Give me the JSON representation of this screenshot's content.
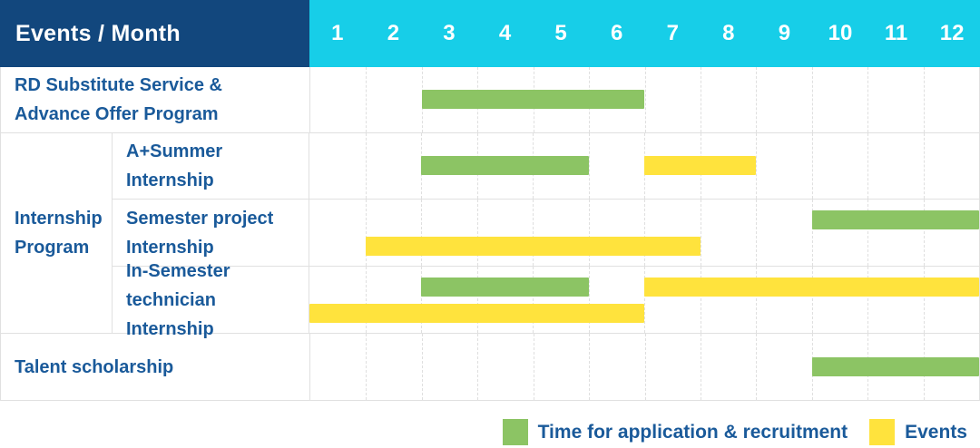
{
  "colors": {
    "header_bg": "#12477D",
    "months_bg": "#17CEE8",
    "application_green": "#8CC464",
    "events_yellow": "#FFE33D",
    "label_blue": "#1A5A9A",
    "grid_gray": "#E0E0E0"
  },
  "header": {
    "label": "Events / Month",
    "months": [
      "1",
      "2",
      "3",
      "4",
      "5",
      "6",
      "7",
      "8",
      "9",
      "10",
      "11",
      "12"
    ]
  },
  "legend": {
    "application": "Time for application & recruitment",
    "events": "Events"
  },
  "chart_data": {
    "type": "gantt",
    "title": "Events / Month",
    "x_axis": {
      "label": "Month",
      "ticks": [
        1,
        2,
        3,
        4,
        5,
        6,
        7,
        8,
        9,
        10,
        11,
        12
      ],
      "range": [
        1,
        12
      ]
    },
    "legend_position": "bottom-right",
    "series_legend": [
      {
        "name": "Time for application & recruitment",
        "color": "#8CC464"
      },
      {
        "name": "Events",
        "color": "#FFE33D"
      }
    ],
    "rows": [
      {
        "group": null,
        "label": "RD Substitute Service & Advance Offer Program",
        "label_lines": [
          "RD Substitute Service &",
          "Advance Offer Program"
        ],
        "bars": [
          {
            "series": "Time for application & recruitment",
            "color_key": "application_green",
            "start_month": 3,
            "end_month": 6,
            "band": "middle"
          }
        ]
      },
      {
        "group": "Internship Program",
        "label": "A+Summer Internship",
        "label_lines": [
          "A+Summer",
          "Internship"
        ],
        "bars": [
          {
            "series": "Time for application & recruitment",
            "color_key": "application_green",
            "start_month": 3,
            "end_month": 5,
            "band": "middle"
          },
          {
            "series": "Events",
            "color_key": "events_yellow",
            "start_month": 7,
            "end_month": 8,
            "band": "middle"
          }
        ]
      },
      {
        "group": "Internship Program",
        "label": "Semester project Internship",
        "label_lines": [
          "Semester project",
          "Internship"
        ],
        "bars": [
          {
            "series": "Time for application & recruitment",
            "color_key": "application_green",
            "start_month": 10,
            "end_month": 12,
            "band": "top"
          },
          {
            "series": "Events",
            "color_key": "events_yellow",
            "start_month": 2,
            "end_month": 7,
            "band": "bottom"
          }
        ]
      },
      {
        "group": "Internship Program",
        "label": "In-Semester technician Internship",
        "label_lines": [
          "In-Semester",
          "technician Internship"
        ],
        "bars": [
          {
            "series": "Time for application & recruitment",
            "color_key": "application_green",
            "start_month": 3,
            "end_month": 5,
            "band": "top"
          },
          {
            "series": "Events",
            "color_key": "events_yellow",
            "start_month": 7,
            "end_month": 12,
            "band": "top"
          },
          {
            "series": "Events",
            "color_key": "events_yellow",
            "start_month": 1,
            "end_month": 6,
            "band": "bottom"
          }
        ]
      },
      {
        "group": null,
        "label": "Talent scholarship",
        "label_lines": [
          "Talent scholarship"
        ],
        "bars": [
          {
            "series": "Time for application & recruitment",
            "color_key": "application_green",
            "start_month": 10,
            "end_month": 12,
            "band": "middle"
          }
        ]
      }
    ],
    "group_label": "Internship Program",
    "group_label_lines": [
      "Internship",
      "Program"
    ]
  }
}
